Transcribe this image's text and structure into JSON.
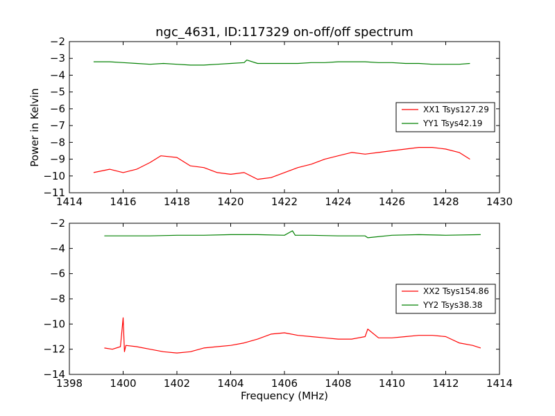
{
  "chart_data": [
    {
      "type": "line",
      "title": "ngc_4631, ID:117329 on-off/off spectrum",
      "xlabel": "",
      "ylabel": "Power in Kelvin",
      "xlim": [
        1414,
        1430
      ],
      "ylim": [
        -11,
        -2
      ],
      "xticks": [
        1414,
        1416,
        1418,
        1420,
        1422,
        1424,
        1426,
        1428,
        1430
      ],
      "yticks": [
        -2,
        -3,
        -4,
        -5,
        -6,
        -7,
        -8,
        -9,
        -10,
        -11
      ],
      "legend_position": "center-right",
      "grid": false,
      "series": [
        {
          "name": "XX1 Tsys127.29",
          "color": "#ff0000",
          "x": [
            1414.9,
            1415.5,
            1416.0,
            1416.5,
            1417.0,
            1417.4,
            1418.0,
            1418.5,
            1419.0,
            1419.5,
            1420.0,
            1420.5,
            1421.0,
            1421.5,
            1422.0,
            1422.5,
            1423.0,
            1423.5,
            1424.0,
            1424.5,
            1425.0,
            1425.5,
            1426.0,
            1426.5,
            1427.0,
            1427.5,
            1428.0,
            1428.5,
            1428.9
          ],
          "y": [
            -9.8,
            -9.6,
            -9.8,
            -9.6,
            -9.2,
            -8.8,
            -8.9,
            -9.4,
            -9.5,
            -9.8,
            -9.9,
            -9.8,
            -10.2,
            -10.1,
            -9.8,
            -9.5,
            -9.3,
            -9.0,
            -8.8,
            -8.6,
            -8.7,
            -8.6,
            -8.5,
            -8.4,
            -8.3,
            -8.3,
            -8.4,
            -8.6,
            -9.0
          ]
        },
        {
          "name": "YY1 Tsys42.19",
          "color": "#008000",
          "x": [
            1414.9,
            1415.5,
            1416.0,
            1416.5,
            1417.0,
            1417.5,
            1418.0,
            1418.5,
            1419.0,
            1419.5,
            1420.0,
            1420.5,
            1420.6,
            1421.0,
            1421.5,
            1422.0,
            1422.5,
            1423.0,
            1423.5,
            1424.0,
            1424.5,
            1425.0,
            1425.5,
            1426.0,
            1426.5,
            1427.0,
            1427.5,
            1428.0,
            1428.5,
            1428.9
          ],
          "y": [
            -3.2,
            -3.2,
            -3.25,
            -3.3,
            -3.35,
            -3.3,
            -3.35,
            -3.4,
            -3.4,
            -3.35,
            -3.3,
            -3.25,
            -3.1,
            -3.3,
            -3.3,
            -3.3,
            -3.3,
            -3.25,
            -3.25,
            -3.2,
            -3.2,
            -3.2,
            -3.25,
            -3.25,
            -3.3,
            -3.3,
            -3.35,
            -3.35,
            -3.35,
            -3.3
          ]
        }
      ]
    },
    {
      "type": "line",
      "title": "",
      "xlabel": "Frequency (MHz)",
      "ylabel": "",
      "xlim": [
        1398,
        1414
      ],
      "ylim": [
        -14,
        -2
      ],
      "xticks": [
        1398,
        1400,
        1402,
        1404,
        1406,
        1408,
        1410,
        1412,
        1414
      ],
      "yticks": [
        -2,
        -4,
        -6,
        -8,
        -10,
        -12,
        -14
      ],
      "legend_position": "center-right",
      "grid": false,
      "series": [
        {
          "name": "XX2 Tsys154.86",
          "color": "#ff0000",
          "x": [
            1399.3,
            1399.6,
            1399.9,
            1400.0,
            1400.05,
            1400.1,
            1400.5,
            1401.0,
            1401.5,
            1402.0,
            1402.5,
            1403.0,
            1403.5,
            1404.0,
            1404.5,
            1405.0,
            1405.5,
            1406.0,
            1406.5,
            1407.0,
            1407.5,
            1408.0,
            1408.5,
            1409.0,
            1409.1,
            1409.5,
            1410.0,
            1410.5,
            1411.0,
            1411.5,
            1412.0,
            1412.5,
            1413.0,
            1413.3
          ],
          "y": [
            -11.9,
            -12.0,
            -11.8,
            -9.5,
            -12.2,
            -11.7,
            -11.8,
            -12.0,
            -12.2,
            -12.3,
            -12.2,
            -11.9,
            -11.8,
            -11.7,
            -11.5,
            -11.2,
            -10.8,
            -10.7,
            -10.9,
            -11.0,
            -11.1,
            -11.2,
            -11.2,
            -11.0,
            -10.4,
            -11.1,
            -11.1,
            -11.0,
            -10.9,
            -10.9,
            -11.0,
            -11.5,
            -11.7,
            -11.9
          ]
        },
        {
          "name": "YY2 Tsys38.38",
          "color": "#008000",
          "x": [
            1399.3,
            1400.0,
            1401.0,
            1402.0,
            1403.0,
            1404.0,
            1405.0,
            1406.0,
            1406.3,
            1406.4,
            1407.0,
            1408.0,
            1409.0,
            1409.1,
            1410.0,
            1411.0,
            1412.0,
            1413.3
          ],
          "y": [
            -3.0,
            -3.0,
            -3.0,
            -2.95,
            -2.95,
            -2.9,
            -2.9,
            -2.95,
            -2.6,
            -2.95,
            -2.95,
            -3.0,
            -3.0,
            -3.15,
            -2.95,
            -2.9,
            -2.95,
            -2.9
          ]
        }
      ]
    }
  ]
}
